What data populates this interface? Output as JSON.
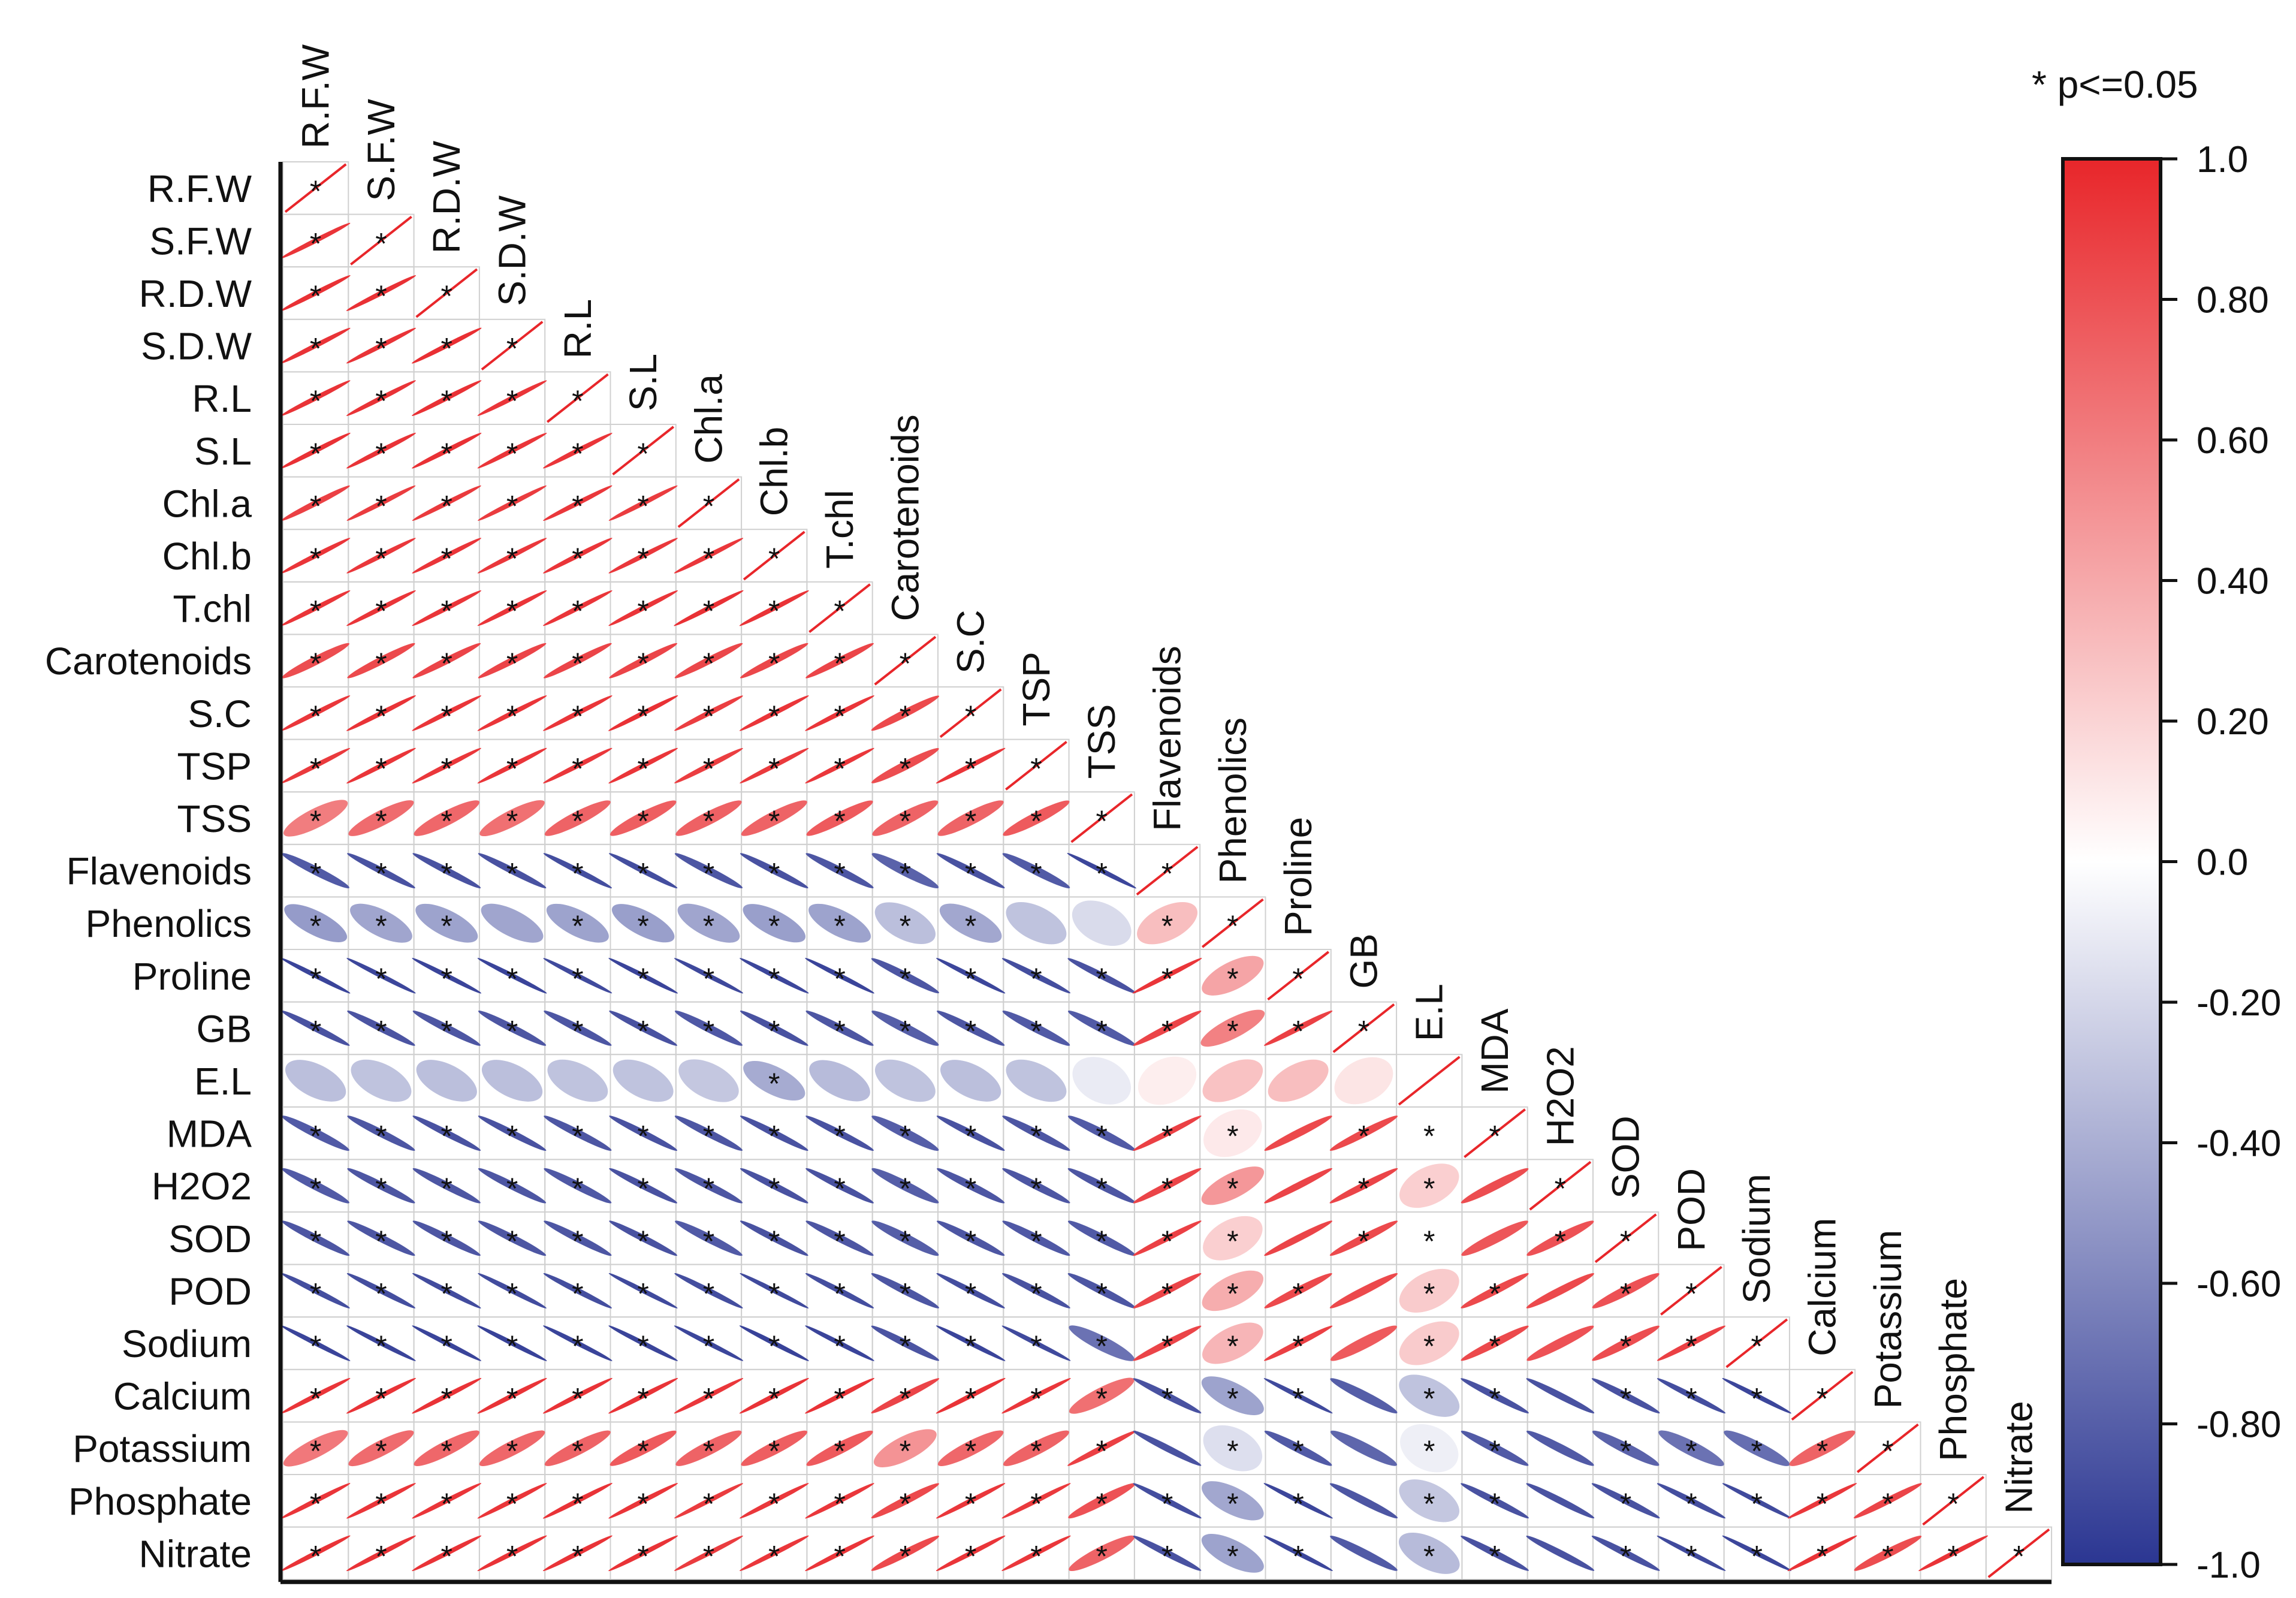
{
  "chart_data": {
    "type": "correlation-matrix",
    "variables": [
      "R.F.W",
      "S.F.W",
      "R.D.W",
      "S.D.W",
      "R.L",
      "S.L",
      "Chl.a",
      "Chl.b",
      "T.chl",
      "Carotenoids",
      "S.C",
      "TSP",
      "TSS",
      "Flavenoids",
      "Phenolics",
      "Proline",
      "GB",
      "E.L",
      "MDA",
      "H2O2",
      "SOD",
      "POD",
      "Sodium",
      "Calcium",
      "Potassium",
      "Phosphate",
      "Nitrate"
    ],
    "significance_note": "* p<=0.05",
    "matrix": [
      [
        1.0
      ],
      [
        0.93,
        1.0
      ],
      [
        0.95,
        0.95,
        1.0
      ],
      [
        0.94,
        0.94,
        0.96,
        1.0
      ],
      [
        0.94,
        0.94,
        0.95,
        0.93,
        1.0
      ],
      [
        0.95,
        0.94,
        0.95,
        0.93,
        0.93,
        1.0
      ],
      [
        0.88,
        0.9,
        0.91,
        0.9,
        0.92,
        0.9,
        1.0
      ],
      [
        0.93,
        0.92,
        0.93,
        0.92,
        0.93,
        0.92,
        0.92,
        1.0
      ],
      [
        0.93,
        0.93,
        0.93,
        0.93,
        0.93,
        0.93,
        0.95,
        0.94,
        1.0
      ],
      [
        0.82,
        0.84,
        0.86,
        0.86,
        0.86,
        0.86,
        0.85,
        0.85,
        0.86,
        1.0
      ],
      [
        0.92,
        0.94,
        0.93,
        0.93,
        0.93,
        0.95,
        0.89,
        0.93,
        0.93,
        0.84,
        1.0
      ],
      [
        0.91,
        0.93,
        0.92,
        0.93,
        0.92,
        0.93,
        0.89,
        0.91,
        0.92,
        0.82,
        0.93,
        1.0
      ],
      [
        0.6,
        0.68,
        0.7,
        0.66,
        0.72,
        0.74,
        0.73,
        0.72,
        0.76,
        0.72,
        0.72,
        0.76,
        1.0
      ],
      [
        -0.82,
        -0.86,
        -0.86,
        -0.86,
        -0.88,
        -0.88,
        -0.84,
        -0.86,
        -0.84,
        -0.78,
        -0.86,
        -0.82,
        -0.92,
        1.0
      ],
      [
        -0.5,
        -0.45,
        -0.46,
        -0.45,
        -0.46,
        -0.48,
        -0.45,
        -0.48,
        -0.46,
        -0.32,
        -0.44,
        -0.3,
        -0.18,
        0.3,
        1.0
      ],
      [
        -0.93,
        -0.92,
        -0.93,
        -0.93,
        -0.9,
        -0.93,
        -0.91,
        -0.92,
        -0.93,
        -0.84,
        -0.92,
        -0.88,
        -0.86,
        0.93,
        0.42,
        1.0
      ],
      [
        -0.86,
        -0.85,
        -0.84,
        -0.84,
        -0.84,
        -0.86,
        -0.83,
        -0.86,
        -0.84,
        -0.8,
        -0.84,
        -0.82,
        -0.82,
        0.86,
        0.58,
        0.88,
        1.0
      ],
      [
        -0.32,
        -0.3,
        -0.32,
        -0.32,
        -0.3,
        -0.3,
        -0.28,
        -0.42,
        -0.34,
        -0.3,
        -0.32,
        -0.3,
        -0.1,
        0.08,
        0.28,
        0.3,
        0.12,
        1.0
      ],
      [
        -0.82,
        -0.84,
        -0.86,
        -0.86,
        -0.84,
        -0.86,
        -0.84,
        -0.86,
        -0.86,
        -0.8,
        -0.86,
        -0.84,
        -0.82,
        0.88,
        0.1,
        0.84,
        0.84,
        0.0,
        1.0
      ],
      [
        -0.82,
        -0.84,
        -0.84,
        -0.84,
        -0.83,
        -0.86,
        -0.84,
        -0.86,
        -0.86,
        -0.8,
        -0.84,
        -0.84,
        -0.84,
        0.86,
        0.48,
        0.86,
        0.86,
        0.22,
        0.82,
        1.0
      ],
      [
        -0.84,
        -0.84,
        -0.84,
        -0.84,
        -0.84,
        -0.86,
        -0.82,
        -0.86,
        -0.84,
        -0.8,
        -0.84,
        -0.83,
        -0.82,
        0.88,
        0.22,
        0.86,
        0.84,
        0.0,
        0.78,
        0.8,
        1.0
      ],
      [
        -0.88,
        -0.88,
        -0.89,
        -0.89,
        -0.88,
        -0.9,
        -0.88,
        -0.9,
        -0.88,
        -0.84,
        -0.88,
        -0.86,
        -0.84,
        0.86,
        0.38,
        0.84,
        0.84,
        0.24,
        0.84,
        0.84,
        0.8,
        1.0
      ],
      [
        -0.93,
        -0.93,
        -0.93,
        -0.94,
        -0.93,
        -0.93,
        -0.92,
        -0.94,
        -0.93,
        -0.85,
        -0.93,
        -0.9,
        -0.7,
        0.86,
        0.34,
        0.88,
        0.76,
        0.24,
        0.84,
        0.8,
        0.82,
        0.88,
        1.0
      ],
      [
        0.93,
        0.94,
        0.94,
        0.94,
        0.94,
        0.94,
        0.92,
        0.94,
        0.94,
        0.86,
        0.94,
        0.92,
        0.66,
        -0.86,
        -0.46,
        -0.9,
        -0.8,
        -0.3,
        -0.86,
        -0.86,
        -0.86,
        -0.88,
        -0.92,
        1.0
      ],
      [
        0.62,
        0.68,
        0.7,
        0.7,
        0.72,
        0.76,
        0.72,
        0.74,
        0.76,
        0.5,
        0.7,
        0.72,
        0.88,
        -0.86,
        -0.16,
        -0.82,
        -0.76,
        -0.08,
        -0.82,
        -0.82,
        -0.78,
        -0.7,
        -0.72,
        0.72,
        1.0
      ],
      [
        0.93,
        0.93,
        0.93,
        0.93,
        0.94,
        0.93,
        0.9,
        0.92,
        0.92,
        0.84,
        0.92,
        0.91,
        0.8,
        -0.88,
        -0.44,
        -0.92,
        -0.84,
        -0.28,
        -0.86,
        -0.86,
        -0.86,
        -0.88,
        -0.9,
        0.92,
        0.86,
        1.0
      ],
      [
        0.94,
        0.94,
        0.94,
        0.94,
        0.94,
        0.94,
        0.9,
        0.92,
        0.93,
        0.84,
        0.93,
        0.92,
        0.72,
        -0.86,
        -0.46,
        -0.92,
        -0.82,
        -0.34,
        -0.86,
        -0.86,
        -0.86,
        -0.9,
        -0.92,
        0.94,
        0.82,
        0.94,
        1.0
      ]
    ],
    "significance": [
      "*",
      "**",
      "***",
      "****",
      "*****",
      "******",
      "*******",
      "********",
      "*********",
      "**********",
      "***********",
      "************",
      "*************",
      "**************",
      "*** *******  ***",
      "*****************",
      "******************",
      "       *          *",
      "*************** *****",
      "*************** ** ***",
      "*************** ** ****",
      "**************** ** ****",
      "**************** ** *****",
      "**************** ** *******",
      "************* ** ** ********",
      "**************** ** *********",
      "**************** ** **********"
    ],
    "colorbar": {
      "ticks": [
        "1.0",
        "0.80",
        "0.60",
        "0.40",
        "0.20",
        "0.0",
        "-0.20",
        "-0.40",
        "-0.60",
        "-0.80",
        "-1.0"
      ],
      "range": [
        -1.0,
        1.0
      ],
      "colors": {
        "positive": "#e8262a",
        "neutral": "#ffffff",
        "negative": "#2b3692"
      }
    }
  }
}
